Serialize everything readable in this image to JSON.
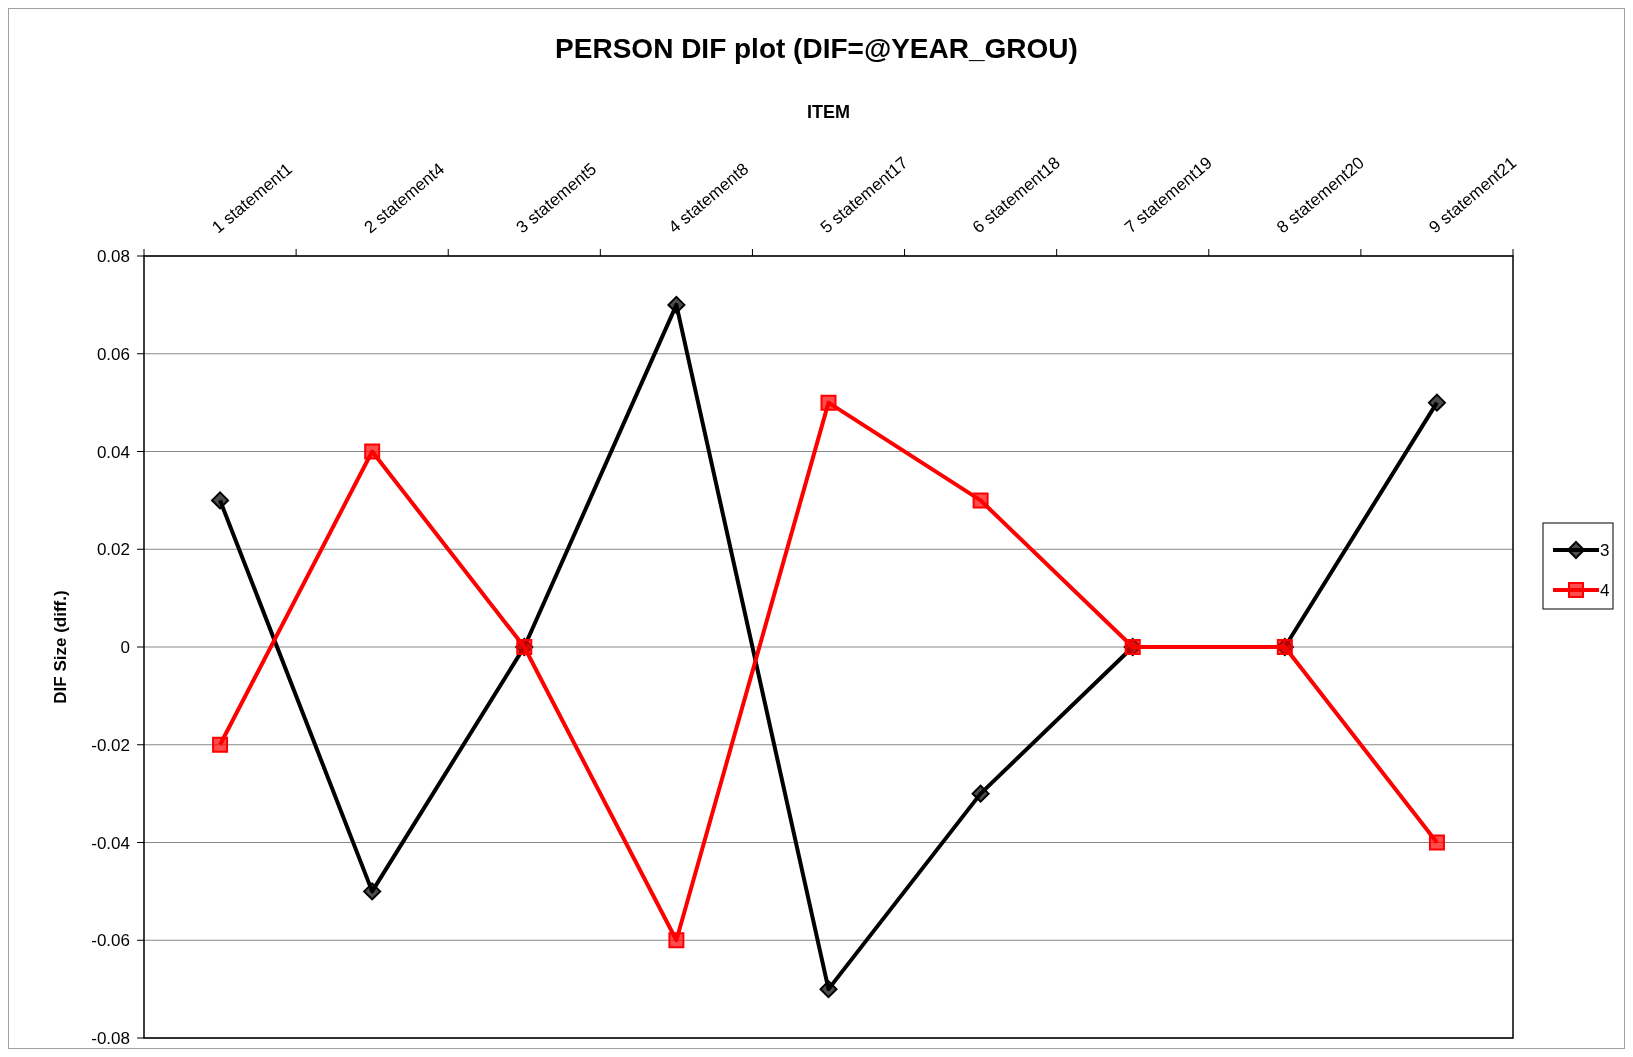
{
  "chart_data": {
    "type": "line",
    "title": "PERSON DIF plot (DIF=@YEAR_GROU)",
    "xlabel": "ITEM",
    "ylabel": "DIF Size (diff.)",
    "categories": [
      "1 statement1",
      "2 statement4",
      "3 statement5",
      "4 statement8",
      "5 statement17",
      "6 statement18",
      "7 statement19",
      "8 statement20",
      "9 statement21"
    ],
    "series": [
      {
        "name": "3",
        "color": "#000000",
        "marker": "diamond",
        "values": [
          0.03,
          -0.05,
          0,
          0.07,
          -0.07,
          -0.03,
          0,
          0,
          0.05
        ]
      },
      {
        "name": "4",
        "color": "#ff0000",
        "marker": "square",
        "values": [
          -0.02,
          0.04,
          0,
          -0.06,
          0.05,
          0.03,
          0,
          0,
          -0.04
        ]
      }
    ],
    "ylim": [
      -0.08,
      0.08
    ],
    "yticks": [
      -0.08,
      -0.06,
      -0.04,
      -0.02,
      0,
      0.02,
      0.04,
      0.06,
      0.08
    ],
    "grid": "y",
    "legend": "right",
    "line_style": "solid"
  }
}
